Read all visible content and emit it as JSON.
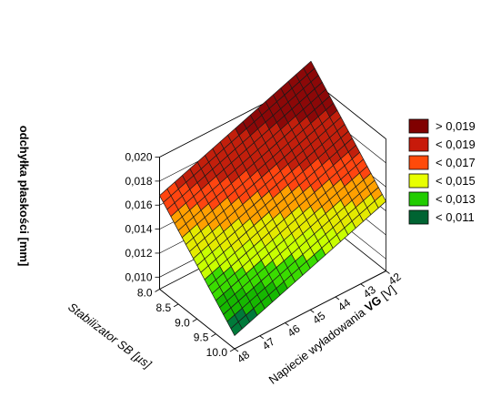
{
  "chart_data": {
    "type": "surface3d",
    "zlabel": "odchyłka płaskości [mm]",
    "xlabel": "Stabilizator SB [µs]",
    "ylabel_prefix": "Napiecie wyładowania ",
    "ylabel_bold": "VG",
    "ylabel_suffix": " [V]",
    "x_ticks": [
      "8.0",
      "8.5",
      "9.0",
      "9.5",
      "10.0"
    ],
    "y_ticks": [
      "42",
      "43",
      "44",
      "45",
      "46",
      "47",
      "48"
    ],
    "z_ticks": [
      "0,010",
      "0,012",
      "0,014",
      "0,016",
      "0,018",
      "0,020"
    ],
    "xlim": [
      8.0,
      10.0
    ],
    "ylim": [
      42,
      48
    ],
    "zlim": [
      0.009,
      0.02
    ],
    "surface_corners": [
      {
        "x": 8.0,
        "y": 42,
        "z": 0.0215
      },
      {
        "x": 8.0,
        "y": 48,
        "z": 0.0168
      },
      {
        "x": 10.0,
        "y": 42,
        "z": 0.0148
      },
      {
        "x": 10.0,
        "y": 48,
        "z": 0.0101
      }
    ],
    "legend": [
      {
        "label": "> 0,019",
        "color": "#800000"
      },
      {
        "label": "< 0,019",
        "color": "#c81a0a"
      },
      {
        "label": "< 0,017",
        "color": "#ff4a0a"
      },
      {
        "label": "< 0,015",
        "color": "#e8ff00"
      },
      {
        "label": "< 0,013",
        "color": "#22cc00"
      },
      {
        "label": "< 0,011",
        "color": "#006432"
      }
    ],
    "surface_colors": {
      "gt_0.019": "#8c0808",
      "lt_0.019": "#c21f0c",
      "lt_0.017": "#ff4510",
      "lt_0.016": "#ffa000",
      "lt_0.015": "#e4ea00",
      "lt_0.014": "#c8ff00",
      "lt_0.013": "#3adc00",
      "lt_0.012": "#16b800",
      "lt_0.011": "#007a3a",
      "lt_0.010": "#00502e"
    }
  }
}
